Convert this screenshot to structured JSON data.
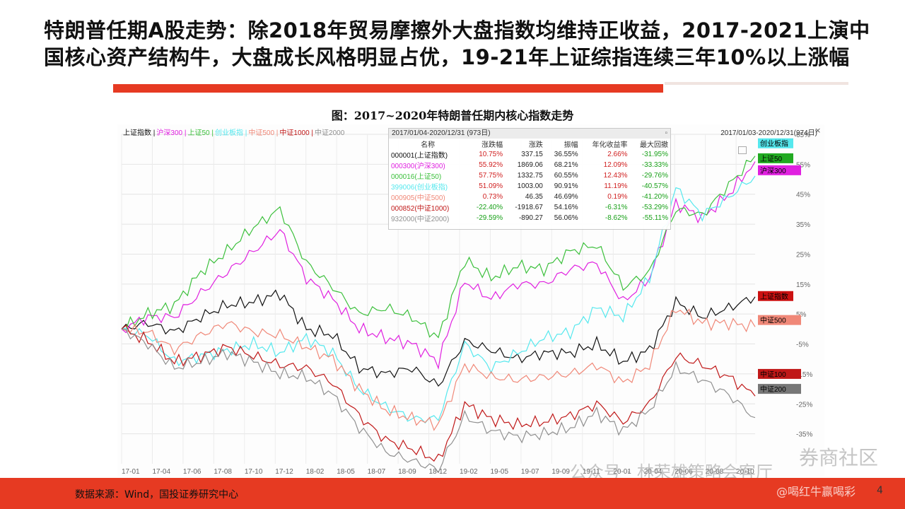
{
  "title": "特朗普任期A股走势：除2018年贸易摩擦外大盘指数均维持正收益，2017-2021上演中国核心资产结构牛，大盘成长风格明显占优，19-21年上证综指连续三年10%以上涨幅",
  "figure_caption": "图：2017~2020年特朗普任期内核心指数走势",
  "source": "数据来源：Wind，国投证券研究中心",
  "page_number": "4",
  "watermarks": {
    "wechat": "公众号 · 林荣雄策略会客厅",
    "community": "券商社区",
    "handle": "@喝红牛赢喝彩"
  },
  "colors": {
    "上证指数": "#111111",
    "沪深300": "#e020e0",
    "上证50": "#3cc03c",
    "创业板指": "#55e8ee",
    "中证500": "#f08878",
    "中证1000": "#c01818",
    "中证2000": "#909090",
    "accent": "#e63a22"
  },
  "chart_data": {
    "type": "line",
    "legend": [
      "上证指数",
      "沪深300",
      "上证50",
      "创业板指",
      "中证500",
      "中证1000",
      "中证2000"
    ],
    "date_range": "2017/01/03-2020/12/31(974日)",
    "x_ticks": [
      "17-01",
      "17-04",
      "17-06",
      "17-08",
      "17-10",
      "17-12",
      "18-02",
      "18-05",
      "18-07",
      "18-09",
      "18-12",
      "19-02",
      "19-05",
      "19-07",
      "19-09",
      "19-11",
      "20-01",
      "20-04",
      "20-06",
      "20-08",
      "20-10"
    ],
    "y_ticks": [
      "65%",
      "55%",
      "45%",
      "35%",
      "25%",
      "15%",
      "5%",
      "-5%",
      "-15%",
      "-25%",
      "-35%"
    ],
    "ylim": [
      -45,
      65
    ],
    "dates": [
      "17-01",
      "17-03",
      "17-05",
      "17-07",
      "17-09",
      "17-11",
      "18-01",
      "18-03",
      "18-05",
      "18-07",
      "18-09",
      "18-11",
      "19-01",
      "19-03",
      "19-05",
      "19-07",
      "19-09",
      "19-11",
      "20-01",
      "20-03",
      "20-05",
      "20-07",
      "20-09",
      "20-11",
      "20-12"
    ],
    "series": [
      {
        "name": "上证指数",
        "values": [
          0,
          2,
          -1,
          4,
          8,
          9,
          12,
          0,
          -2,
          -13,
          -15,
          -13,
          -19,
          -4,
          -7,
          -10,
          -8,
          -8,
          -5,
          -11,
          -7,
          9,
          4,
          7,
          10.75
        ]
      },
      {
        "name": "沪深300",
        "values": [
          0,
          4,
          4,
          12,
          19,
          26,
          33,
          17,
          10,
          0,
          -3,
          -5,
          -11,
          16,
          10,
          15,
          15,
          20,
          22,
          9,
          17,
          42,
          37,
          45,
          55.92
        ]
      },
      {
        "name": "上证50",
        "values": [
          0,
          5,
          8,
          19,
          26,
          34,
          40,
          22,
          14,
          5,
          7,
          4,
          -3,
          23,
          17,
          21,
          20,
          26,
          28,
          14,
          19,
          40,
          38,
          48,
          57.75
        ]
      },
      {
        "name": "创业板指",
        "values": [
          0,
          -2,
          -11,
          -9,
          -7,
          -5,
          -8,
          -3,
          -8,
          -20,
          -26,
          -30,
          -30,
          -5,
          -13,
          -8,
          -3,
          -1,
          7,
          4,
          17,
          47,
          38,
          44,
          51.09
        ]
      },
      {
        "name": "中证500",
        "values": [
          0,
          -1,
          -7,
          -2,
          2,
          -1,
          -2,
          -6,
          -10,
          -20,
          -27,
          -30,
          -32,
          -12,
          -16,
          -17,
          -16,
          -15,
          -12,
          -18,
          -12,
          7,
          2,
          2,
          0.73
        ]
      },
      {
        "name": "中证1000",
        "values": [
          0,
          -4,
          -11,
          -9,
          -6,
          -9,
          -12,
          -13,
          -18,
          -29,
          -37,
          -40,
          -44,
          -25,
          -30,
          -32,
          -31,
          -29,
          -25,
          -31,
          -25,
          -9,
          -12,
          -16,
          -22.4
        ]
      },
      {
        "name": "中证2000",
        "values": [
          0,
          -5,
          -13,
          -11,
          -8,
          -11,
          -15,
          -16,
          -22,
          -33,
          -41,
          -44,
          -47,
          -29,
          -34,
          -36,
          -35,
          -33,
          -28,
          -34,
          -27,
          -13,
          -17,
          -22,
          -29.59
        ]
      }
    ],
    "end_labels": [
      {
        "name": "创业板指",
        "value": 62,
        "bg": "#55e8ee"
      },
      {
        "name": "上证50",
        "value": 57,
        "bg": "#22aa22"
      },
      {
        "name": "沪深300",
        "value": 53,
        "bg": "#e020e0"
      },
      {
        "name": "上证指数",
        "value": 11,
        "bg": "#cc1111"
      },
      {
        "name": "中证500",
        "value": 3,
        "bg": "#f08878"
      },
      {
        "name": "中证100",
        "value": -15,
        "bg": "#c01818"
      },
      {
        "name": "中证200",
        "value": -20,
        "bg": "#777777"
      }
    ],
    "stats_table": {
      "period": "2017/01/04-2020/12/31 (973日)",
      "headers": [
        "名称",
        "涨跌幅",
        "涨跌",
        "振幅",
        "年化收益率",
        "最大回撤"
      ],
      "rows": [
        [
          "000001(上证指数)",
          "10.75%",
          "337.15",
          "36.55%",
          "2.66%",
          "-31.95%"
        ],
        [
          "000300(沪深300)",
          "55.92%",
          "1869.06",
          "68.21%",
          "12.09%",
          "-33.33%"
        ],
        [
          "000016(上证50)",
          "57.75%",
          "1332.75",
          "60.55%",
          "12.43%",
          "-29.76%"
        ],
        [
          "399006(创业板指)",
          "51.09%",
          "1003.00",
          "90.91%",
          "11.19%",
          "-40.57%"
        ],
        [
          "000905(中证500)",
          "0.73%",
          "46.35",
          "46.69%",
          "0.19%",
          "-41.20%"
        ],
        [
          "000852(中证1000)",
          "-22.40%",
          "-1918.67",
          "54.16%",
          "-6.31%",
          "-53.29%"
        ],
        [
          "932000(中证2000)",
          "-29.59%",
          "-890.27",
          "56.06%",
          "-8.62%",
          "-55.11%"
        ]
      ]
    }
  }
}
